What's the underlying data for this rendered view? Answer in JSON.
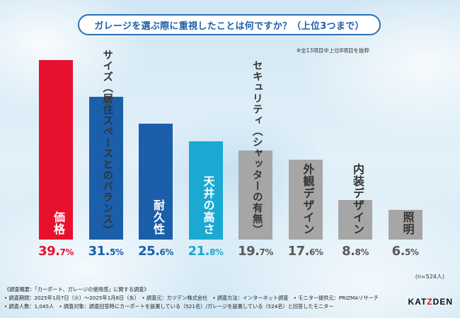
{
  "chart_data": {
    "type": "bar",
    "title": "ガレージを選ぶ際に重視したことは何ですか？（上位3つまで）",
    "note": "※全13項目中上位8項目を抜粋",
    "unit": "%",
    "categories": [
      "価格",
      "サイズ（居住スペースとのバランス）",
      "耐久性",
      "天井の高さ",
      "セキュリティ（シャッターの有無）",
      "外観デザイン",
      "内装デザイン",
      "照明"
    ],
    "values": [
      39.7,
      31.5,
      25.6,
      21.8,
      19.7,
      17.6,
      8.8,
      6.5
    ],
    "pct_labels": [
      {
        "int": "39.",
        "dec": "7%"
      },
      {
        "int": "31.",
        "dec": "5%"
      },
      {
        "int": "25.",
        "dec": "6%"
      },
      {
        "int": "21.",
        "dec": "8%"
      },
      {
        "int": "19.",
        "dec": "7%"
      },
      {
        "int": "17.",
        "dec": "6%"
      },
      {
        "int": "8.",
        "dec": "8%"
      },
      {
        "int": "6.",
        "dec": "5%"
      }
    ],
    "bar_colors": [
      "#e8112d",
      "#1b5fab",
      "#1b5fab",
      "#1ba9d3",
      "#a6a6a6",
      "#a6a6a6",
      "#a6a6a6",
      "#a6a6a6"
    ],
    "label_colors": [
      "#ffffff",
      "#ffffff",
      "#ffffff",
      "#ffffff",
      "#ffffff",
      "#ffffff",
      "#ffffff",
      "#ffffff"
    ],
    "pct_colors": [
      "#e8112d",
      "#1b5fab",
      "#1b5fab",
      "#1ba9d3",
      "#595959",
      "#595959",
      "#595959",
      "#595959"
    ],
    "ylim": [
      0,
      40
    ],
    "sample": "(n=524人)"
  },
  "footer": {
    "line1": "《調査概要：「カーポート、ガレージの使用感」に関する調査》",
    "line2": "• 調査期間：2025年1月7日（火）～2025年1月8日（水）　• 調査元：カツデン株式会社　• 調査方法：インターネット調査　• モニター提供元：PRIZMAリサーチ",
    "line3": "• 調査人数：1,045人　• 調査対象：調査回答時にカーポートを設置している（521名）/ガレージを設置している（524名）と回答したモニター"
  },
  "logo": {
    "a": "KAT",
    "x": "Z",
    "b": "DEN"
  }
}
